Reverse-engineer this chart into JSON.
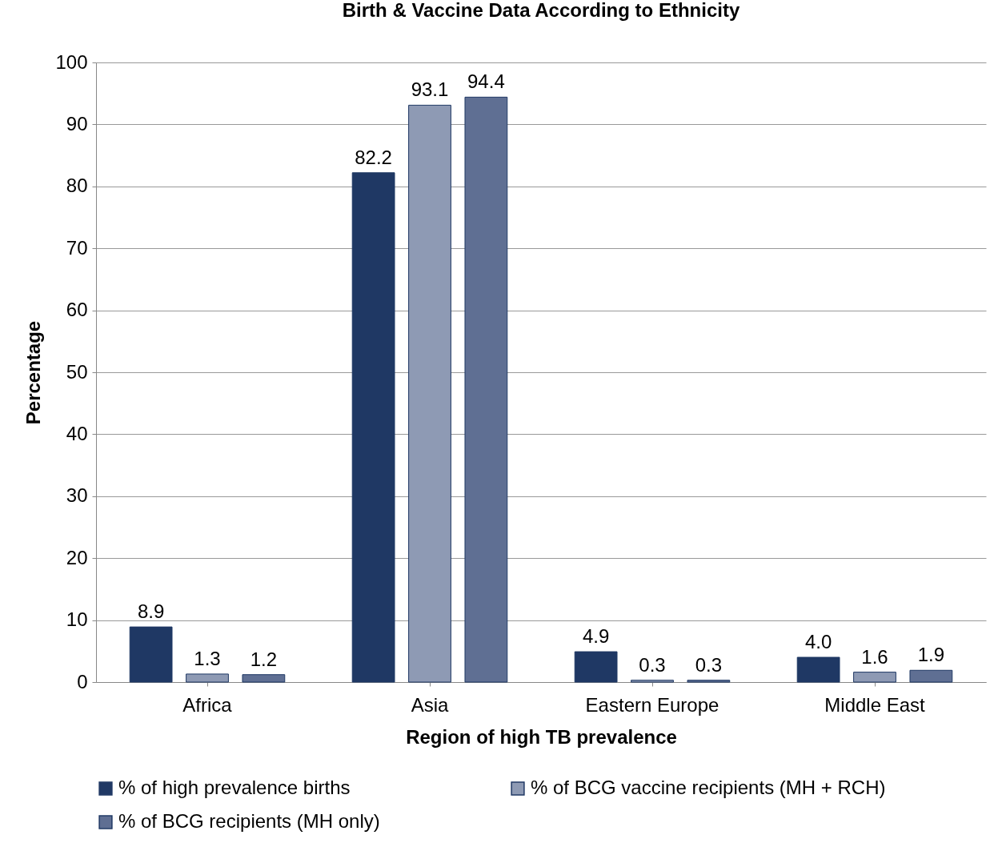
{
  "chart_data": {
    "type": "bar",
    "title": "Birth & Vaccine Data According to Ethnicity",
    "xlabel": "Region of high TB prevalence",
    "ylabel": "Percentage",
    "categories": [
      "Africa",
      "Asia",
      "Eastern Europe",
      "Middle East"
    ],
    "series": [
      {
        "name": "% of high prevalence births",
        "color": "#1f3864",
        "values": [
          8.9,
          82.2,
          4.9,
          4.0
        ],
        "value_labels": [
          "8.9",
          "82.2",
          "4.9",
          "4.0"
        ]
      },
      {
        "name": "% of BCG vaccine recipients (MH + RCH)",
        "color": "#8e9ab4",
        "values": [
          1.3,
          93.1,
          0.3,
          1.6
        ],
        "value_labels": [
          "1.3",
          "93.1",
          "0.3",
          "1.6"
        ]
      },
      {
        "name": "% of BCG recipients (MH only)",
        "color": "#5f6f93",
        "values": [
          1.2,
          94.4,
          0.3,
          1.9
        ],
        "value_labels": [
          "1.2",
          "94.4",
          "0.3",
          "1.9"
        ]
      }
    ],
    "ylim": [
      0,
      100
    ],
    "yticks": [
      0,
      10,
      20,
      30,
      40,
      50,
      60,
      70,
      80,
      90,
      100
    ],
    "grid": "y",
    "legend": "bottom"
  }
}
